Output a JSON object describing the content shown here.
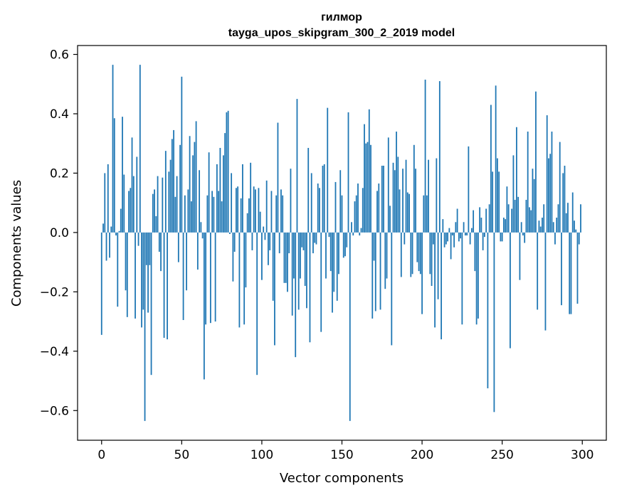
{
  "chart_data": {
    "type": "bar",
    "title": "гилмор",
    "subtitle": "tayga_upos_skipgram_300_2_2019 model",
    "xlabel": "Vector components",
    "ylabel": "Components values",
    "xlim": [
      -15,
      315
    ],
    "ylim": [
      -0.7,
      0.63
    ],
    "xticks": [
      0,
      50,
      100,
      150,
      200,
      250,
      300
    ],
    "xtick_labels": [
      "0",
      "50",
      "100",
      "150",
      "200",
      "250",
      "300"
    ],
    "yticks": [
      -0.6,
      -0.4,
      -0.2,
      0.0,
      0.2,
      0.4,
      0.6
    ],
    "ytick_labels": [
      "−0.6",
      "−0.4",
      "−0.2",
      "0.0",
      "0.2",
      "0.4",
      "0.6"
    ],
    "grid": false,
    "bar_color": "#1f77b4",
    "x": "indices 0..299 (vector component index)",
    "values": [
      -0.345,
      0.03,
      0.2,
      -0.095,
      0.23,
      -0.085,
      0.02,
      0.565,
      0.385,
      -0.01,
      -0.25,
      0.005,
      0.08,
      0.39,
      0.195,
      -0.195,
      -0.285,
      0.14,
      0.15,
      0.32,
      0.19,
      -0.29,
      0.255,
      -0.045,
      0.565,
      -0.32,
      -0.26,
      -0.635,
      -0.11,
      -0.27,
      -0.11,
      -0.48,
      0.13,
      0.145,
      0.055,
      0.19,
      -0.065,
      -0.13,
      0.185,
      -0.355,
      0.275,
      -0.36,
      0.205,
      0.245,
      0.315,
      0.345,
      0.12,
      0.19,
      -0.1,
      0.295,
      0.525,
      -0.295,
      0.125,
      -0.195,
      0.145,
      0.325,
      0.105,
      0.26,
      0.305,
      0.375,
      -0.125,
      0.21,
      0.035,
      -0.02,
      -0.495,
      -0.31,
      0.125,
      0.27,
      -0.305,
      0.14,
      0.12,
      -0.3,
      0.23,
      0.14,
      0.285,
      0.105,
      0.26,
      0.335,
      0.405,
      0.41,
      -0.005,
      0.2,
      -0.165,
      -0.065,
      0.15,
      0.155,
      -0.32,
      0.115,
      0.23,
      -0.31,
      -0.185,
      0.065,
      0.115,
      0.235,
      -0.06,
      0.155,
      0.145,
      -0.48,
      0.15,
      0.07,
      -0.16,
      0.02,
      -0.025,
      0.175,
      -0.11,
      -0.06,
      0.14,
      -0.23,
      -0.38,
      0.125,
      0.37,
      -0.07,
      0.145,
      0.125,
      -0.17,
      -0.17,
      -0.2,
      -0.07,
      0.215,
      -0.28,
      -0.155,
      -0.42,
      0.45,
      -0.26,
      -0.155,
      -0.05,
      -0.06,
      -0.18,
      -0.255,
      0.285,
      -0.37,
      0.2,
      -0.07,
      -0.035,
      -0.04,
      0.165,
      0.15,
      -0.335,
      0.225,
      0.23,
      -0.155,
      0.42,
      -0.015,
      -0.13,
      -0.27,
      -0.2,
      0.17,
      -0.23,
      -0.14,
      0.21,
      0.125,
      -0.085,
      -0.08,
      -0.05,
      0.405,
      -0.635,
      0.035,
      -0.01,
      0.105,
      0.125,
      0.165,
      -0.01,
      0.015,
      0.15,
      0.365,
      0.3,
      0.305,
      0.415,
      0.295,
      -0.29,
      -0.095,
      -0.265,
      0.14,
      0.165,
      -0.26,
      0.225,
      0.225,
      -0.19,
      -0.155,
      0.32,
      0.09,
      -0.38,
      0.235,
      0.21,
      0.34,
      0.255,
      0.145,
      -0.15,
      0.215,
      -0.04,
      0.245,
      0.135,
      0.13,
      -0.15,
      -0.14,
      0.295,
      0.215,
      -0.1,
      -0.13,
      -0.14,
      -0.275,
      0.125,
      0.515,
      0.125,
      0.245,
      -0.14,
      -0.18,
      -0.04,
      -0.32,
      0.25,
      -0.225,
      0.51,
      -0.36,
      0.045,
      -0.05,
      -0.04,
      -0.03,
      0.015,
      -0.09,
      -0.01,
      -0.05,
      0.035,
      0.08,
      -0.03,
      -0.02,
      -0.31,
      0.035,
      -0.01,
      -0.01,
      0.29,
      -0.04,
      0.015,
      0.075,
      -0.13,
      -0.31,
      -0.29,
      0.085,
      0.05,
      -0.06,
      -0.015,
      0.08,
      -0.525,
      0.095,
      0.43,
      0.205,
      -0.605,
      0.495,
      0.25,
      0.205,
      -0.03,
      -0.03,
      0.05,
      0.045,
      0.155,
      0.095,
      -0.39,
      0.08,
      0.26,
      0.11,
      0.355,
      0.12,
      -0.16,
      0.035,
      -0.01,
      -0.035,
      0.11,
      0.34,
      0.085,
      0.075,
      0.215,
      0.18,
      0.475,
      -0.26,
      0.04,
      0.02,
      0.05,
      0.095,
      -0.33,
      0.395,
      0.25,
      0.265,
      0.34,
      0.035,
      -0.04,
      0.05,
      0.095,
      0.305,
      -0.245,
      0.2,
      0.225,
      0.065,
      0.1,
      -0.275,
      -0.275,
      0.135,
      0.04,
      0.01,
      -0.24,
      -0.04,
      0.095
    ]
  }
}
